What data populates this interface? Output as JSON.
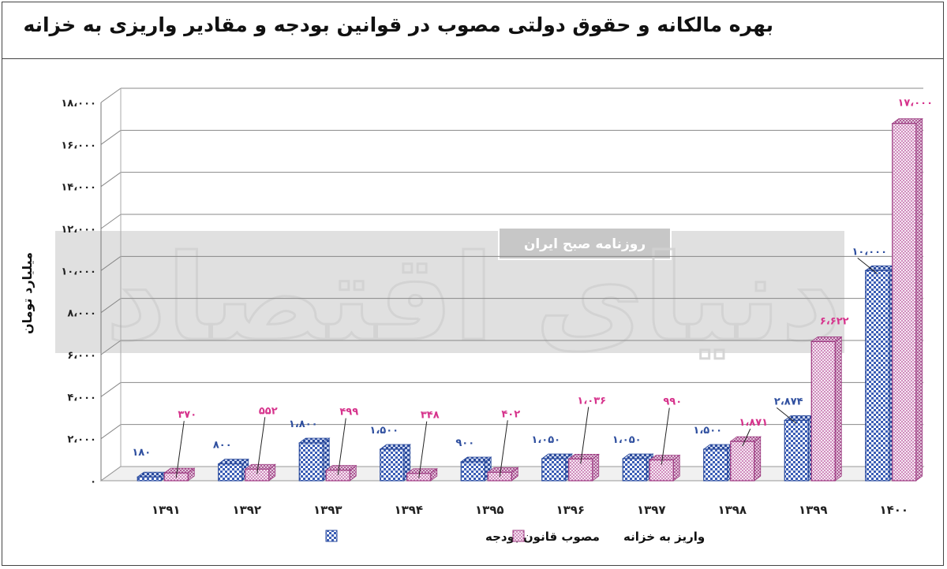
{
  "title": "بهره مالکانه و حقوق دولتی مصوب در قوانین بودجه و مقادیر واریزی به خزانه",
  "watermark": {
    "logo_text": "دنیای اقتصاد",
    "badge_text": "روزنامه صبح ایران"
  },
  "colors": {
    "series1": "#3a5db5",
    "series2": "#c65aa8",
    "label1": "#2f4f9f",
    "label2": "#d6338c"
  },
  "chart_data": {
    "type": "bar",
    "title": "بهره مالکانه و حقوق دولتی مصوب در قوانین بودجه و مقادیر واریزی به خزانه",
    "xlabel": "",
    "ylabel": "میلیارد تومان",
    "ylim": [
      0,
      18000
    ],
    "yticks": [
      {
        "value": 0,
        "label": "۰"
      },
      {
        "value": 2000,
        "label": "۲،۰۰۰"
      },
      {
        "value": 4000,
        "label": "۴،۰۰۰"
      },
      {
        "value": 6000,
        "label": "۶،۰۰۰"
      },
      {
        "value": 8000,
        "label": "۸،۰۰۰"
      },
      {
        "value": 10000,
        "label": "۱۰،۰۰۰"
      },
      {
        "value": 12000,
        "label": "۱۲،۰۰۰"
      },
      {
        "value": 14000,
        "label": "۱۴،۰۰۰"
      },
      {
        "value": 16000,
        "label": "۱۶،۰۰۰"
      },
      {
        "value": 18000,
        "label": "۱۸،۰۰۰"
      }
    ],
    "categories": [
      "۱۳۹۱",
      "۱۳۹۲",
      "۱۳۹۳",
      "۱۳۹۴",
      "۱۳۹۵",
      "۱۳۹۶",
      "۱۳۹۷",
      "۱۳۹۸",
      "۱۳۹۹",
      "۱۴۰۰"
    ],
    "grid": true,
    "three_d": true,
    "legend_position": "bottom",
    "series": [
      {
        "name": "مصوب قانون بودجه",
        "values": [
          180,
          800,
          1800,
          1500,
          900,
          1050,
          1050,
          1500,
          2874,
          10000
        ],
        "labels": [
          "۱۸۰",
          "۸۰۰",
          "۱،۸۰۰",
          "۱،۵۰۰",
          "۹۰۰",
          "۱،۰۵۰",
          "۱،۰۵۰",
          "۱،۵۰۰",
          "۲،۸۷۴",
          "۱۰،۰۰۰"
        ]
      },
      {
        "name": "واریز به خزانه",
        "values": [
          370,
          552,
          499,
          348,
          402,
          1036,
          990,
          1871,
          6622,
          17000
        ],
        "labels": [
          "۳۷۰",
          "۵۵۲",
          "۴۹۹",
          "۳۴۸",
          "۴۰۲",
          "۱،۰۳۶",
          "۹۹۰",
          "۱،۸۷۱",
          "۶،۶۲۲",
          "۱۷،۰۰۰"
        ]
      }
    ]
  }
}
